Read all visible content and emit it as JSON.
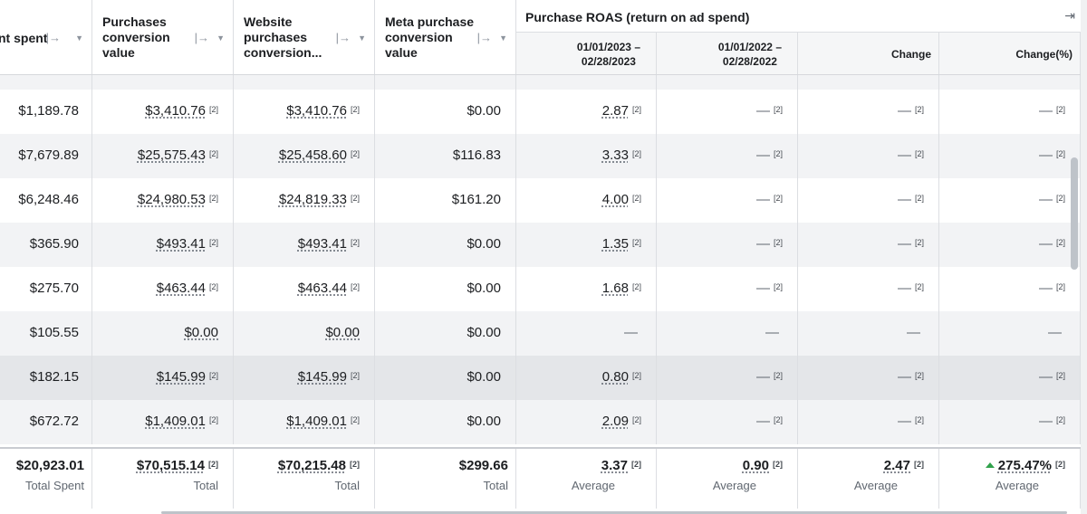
{
  "columns": [
    {
      "title": "nt spent"
    },
    {
      "title": "Purchases conversion value"
    },
    {
      "title": "Website purchases conversion..."
    },
    {
      "title": "Meta purchase conversion value"
    }
  ],
  "group": {
    "title": "Purchase ROAS (return on ad spend)",
    "collapse_icon": "collapse-right-icon",
    "subcolumns": [
      "01/01/2023 –\n02/28/2023",
      "01/01/2022 –\n02/28/2022",
      "Change",
      "Change(%)"
    ]
  },
  "footnote": "[2]",
  "dash": "—",
  "rows": [
    {
      "spent": "$1,189.78",
      "pcv": "$3,410.76",
      "wpc": "$3,410.76",
      "meta": "$0.00",
      "roas23": "2.87",
      "roas22": "—",
      "change": "—",
      "changepct": "—"
    },
    {
      "spent": "$7,679.89",
      "pcv": "$25,575.43",
      "wpc": "$25,458.60",
      "meta": "$116.83",
      "roas23": "3.33",
      "roas22": "—",
      "change": "—",
      "changepct": "—"
    },
    {
      "spent": "$6,248.46",
      "pcv": "$24,980.53",
      "wpc": "$24,819.33",
      "meta": "$161.20",
      "roas23": "4.00",
      "roas22": "—",
      "change": "—",
      "changepct": "—"
    },
    {
      "spent": "$365.90",
      "pcv": "$493.41",
      "wpc": "$493.41",
      "meta": "$0.00",
      "roas23": "1.35",
      "roas22": "—",
      "change": "—",
      "changepct": "—"
    },
    {
      "spent": "$275.70",
      "pcv": "$463.44",
      "wpc": "$463.44",
      "meta": "$0.00",
      "roas23": "1.68",
      "roas22": "—",
      "change": "—",
      "changepct": "—"
    },
    {
      "spent": "$105.55",
      "pcv": "$0.00",
      "wpc": "$0.00",
      "meta": "$0.00",
      "roas23": "—",
      "roas22": "—",
      "change": "—",
      "changepct": "—"
    },
    {
      "spent": "$182.15",
      "pcv": "$145.99",
      "wpc": "$145.99",
      "meta": "$0.00",
      "roas23": "0.80",
      "roas22": "—",
      "change": "—",
      "changepct": "—"
    },
    {
      "spent": "$672.72",
      "pcv": "$1,409.01",
      "wpc": "$1,409.01",
      "meta": "$0.00",
      "roas23": "2.09",
      "roas22": "—",
      "change": "—",
      "changepct": "—"
    }
  ],
  "totals": {
    "spent": {
      "value": "$20,923.01",
      "label": "Total Spent"
    },
    "pcv": {
      "value": "$70,515.14",
      "label": "Total"
    },
    "wpc": {
      "value": "$70,215.48",
      "label": "Total"
    },
    "meta": {
      "value": "$299.66",
      "label": "Total"
    },
    "roas23": {
      "value": "3.37",
      "label": "Average"
    },
    "roas22": {
      "value": "0.90",
      "label": "Average"
    },
    "change": {
      "value": "2.47",
      "label": "Average"
    },
    "changepct": {
      "value": "275.47%",
      "label": "Average",
      "trend": "up",
      "trend_color": "#31a24c"
    }
  },
  "colors": {
    "header_bg": "#ffffff",
    "subheader_bg": "#f5f6f7",
    "row_alt": "#f2f3f5",
    "row_hover": "#e4e6e9",
    "border": "#dcdee2"
  }
}
